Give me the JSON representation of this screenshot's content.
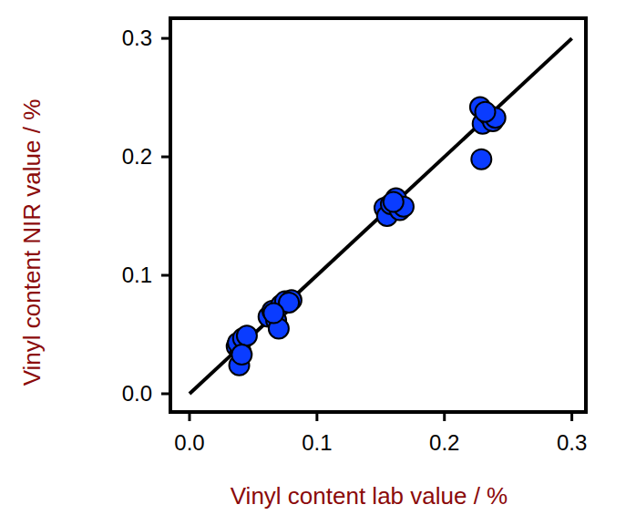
{
  "chart_data": {
    "type": "scatter",
    "x_label": "Vinyl content lab value / %",
    "y_label": "Vinyl content NIR value / %",
    "x": [
      0.037,
      0.04,
      0.038,
      0.042,
      0.045,
      0.039,
      0.041,
      0.062,
      0.065,
      0.068,
      0.07,
      0.072,
      0.075,
      0.08,
      0.078,
      0.066,
      0.153,
      0.155,
      0.158,
      0.162,
      0.165,
      0.168,
      0.16,
      0.228,
      0.23,
      0.229,
      0.235,
      0.238,
      0.24,
      0.232
    ],
    "y": [
      0.04,
      0.036,
      0.043,
      0.047,
      0.049,
      0.024,
      0.033,
      0.065,
      0.07,
      0.062,
      0.055,
      0.075,
      0.078,
      0.079,
      0.077,
      0.068,
      0.157,
      0.15,
      0.16,
      0.165,
      0.155,
      0.158,
      0.162,
      0.242,
      0.228,
      0.198,
      0.235,
      0.23,
      0.233,
      0.238
    ],
    "fit_line": {
      "x": [
        0,
        0.3
      ],
      "y": [
        0,
        0.3
      ]
    },
    "color": "#0a3cff",
    "marker": "circle",
    "xlim": [
      -0.015,
      0.311
    ],
    "ylim": [
      -0.0154,
      0.317
    ],
    "xticks": [
      {
        "value": 0,
        "label": "0.0"
      },
      0.1,
      0.2,
      0.3
    ],
    "yticks": [
      {
        "value": 0,
        "label": "0.0"
      },
      0.1,
      0.2,
      0.3
    ],
    "grid": false
  }
}
